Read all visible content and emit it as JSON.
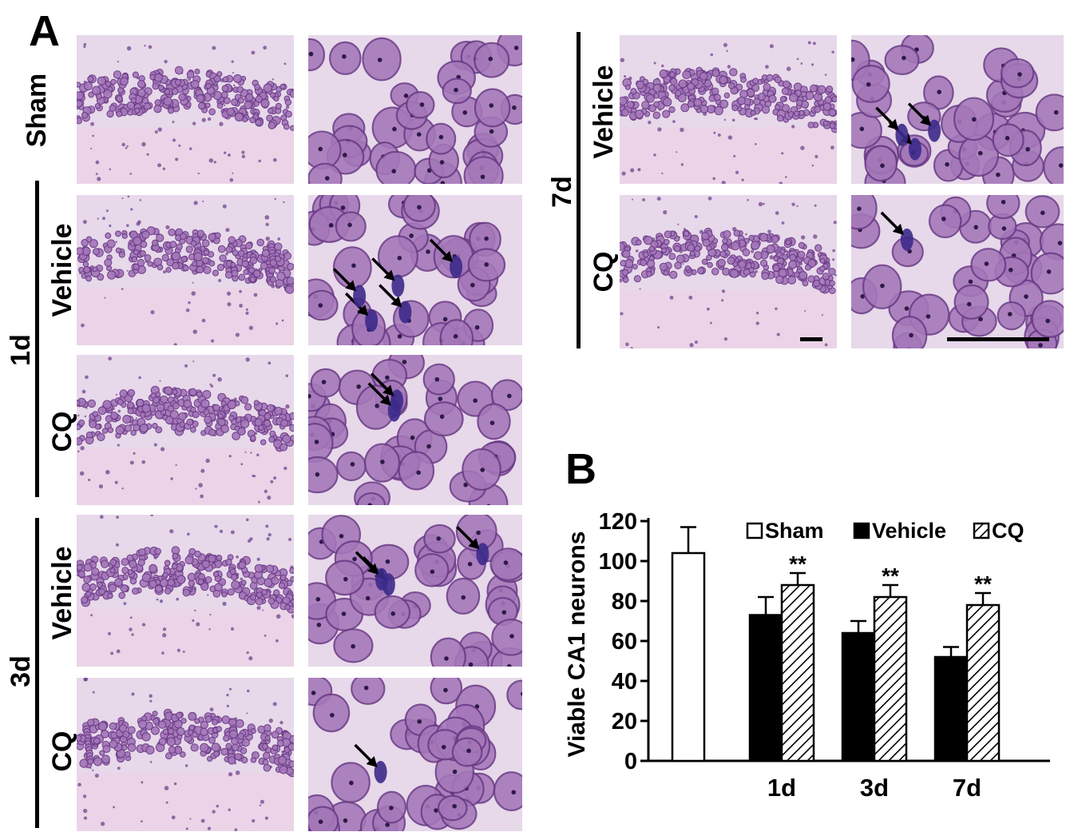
{
  "figure": {
    "panel_a_label": "A",
    "panel_b_label": "B",
    "rows": [
      {
        "id": "sham",
        "label": "Sham"
      },
      {
        "id": "1d-vehicle",
        "label": "Vehicle"
      },
      {
        "id": "1d-cq",
        "label": "CQ"
      },
      {
        "id": "3d-vehicle",
        "label": "Vehicle"
      },
      {
        "id": "3d-cq",
        "label": "CQ"
      },
      {
        "id": "7d-vehicle",
        "label": "Vehicle"
      },
      {
        "id": "7d-cq",
        "label": "CQ"
      }
    ],
    "groups": {
      "d1": "1d",
      "d3": "3d",
      "d7": "7d"
    },
    "colors": {
      "tissue_background": "#e7d8ea",
      "tissue_pink": "#ecd3e6",
      "neuron_fill": "#a477b9",
      "neuron_dark": "#6a3b86",
      "damaged_neuron": "#3c2a8a",
      "nucleus": "#2f1a45"
    }
  },
  "chart_data": {
    "type": "bar",
    "ylabel": "Viable CA1 neurons",
    "xlabel": "",
    "ylim": [
      0,
      120
    ],
    "yticks": [
      0,
      20,
      40,
      60,
      80,
      100,
      120
    ],
    "categories": [
      "",
      "1d",
      "3d",
      "7d"
    ],
    "legend": [
      "Sham",
      "Vehicle",
      "CQ"
    ],
    "legend_placement": "top",
    "grid": false,
    "series": [
      {
        "name": "Sham",
        "fill": "white",
        "values": [
          104,
          null,
          null,
          null
        ],
        "errors": [
          13,
          null,
          null,
          null
        ]
      },
      {
        "name": "Vehicle",
        "fill": "black",
        "values": [
          null,
          73,
          64,
          52
        ],
        "errors": [
          null,
          9,
          6,
          5
        ]
      },
      {
        "name": "CQ",
        "fill": "hatched",
        "values": [
          null,
          88,
          82,
          78
        ],
        "errors": [
          null,
          6,
          6,
          6
        ]
      }
    ],
    "annotations": [
      "**",
      "**",
      "**"
    ]
  }
}
